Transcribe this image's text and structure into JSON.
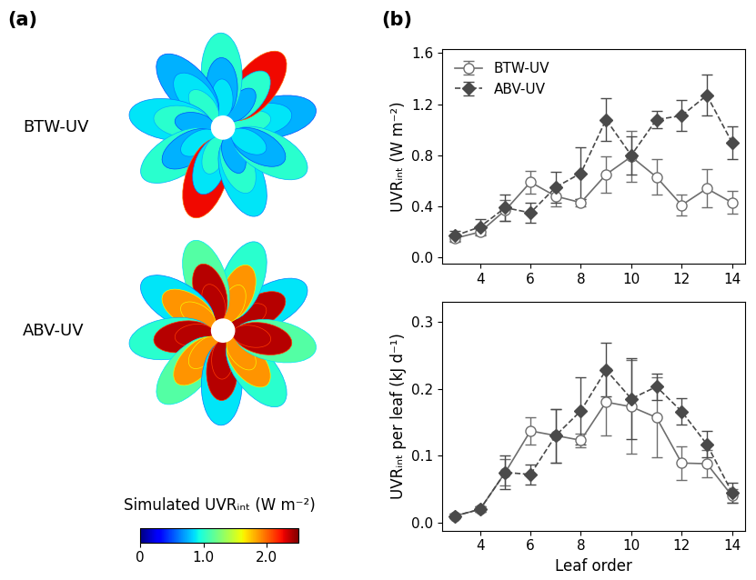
{
  "chart_data": [
    {
      "type": "image",
      "panel": "(a)",
      "labels": [
        "BTW-UV",
        "ABV-UV"
      ],
      "colorbar": {
        "label": "Simulated UVRᵢₙₜ (W m⁻²)",
        "range": [
          0,
          2.5
        ],
        "ticks": [
          0,
          {
            "value": 1.0,
            "label": "1.0"
          },
          {
            "value": 2.0,
            "label": "2.0"
          }
        ]
      }
    },
    {
      "type": "line",
      "panel": "(b)",
      "y_label": "UVRᵢₙₜ (W m⁻²)",
      "x": [
        3,
        4,
        5,
        6,
        7,
        8,
        9,
        10,
        11,
        12,
        13,
        14
      ],
      "xlim": [
        2.5,
        14.5
      ],
      "xticks": [
        4,
        6,
        8,
        10,
        12,
        14
      ],
      "ylim": [
        -0.05,
        1.63
      ],
      "yticks": [
        {
          "value": 0.0,
          "label": "0.0"
        },
        {
          "value": 0.4,
          "label": "0.4"
        },
        {
          "value": 0.8,
          "label": "0.8"
        },
        {
          "value": 1.2,
          "label": "1.2"
        },
        {
          "value": 1.6,
          "label": "1.6"
        }
      ],
      "legend": "upper left",
      "series": [
        {
          "name": "BTW-UV",
          "color": "#6e6e6e",
          "marker": "circle",
          "line_style": "solid",
          "values": [
            0.15,
            0.2,
            0.37,
            0.59,
            0.48,
            0.43,
            0.65,
            0.79,
            0.63,
            0.41,
            0.54,
            0.43
          ],
          "errors": [
            0.03,
            0.03,
            0.08,
            0.09,
            0.08,
            0.03,
            0.14,
            0.2,
            0.14,
            0.08,
            0.15,
            0.09
          ]
        },
        {
          "name": "ABV-UV",
          "color": "#4a4a4a",
          "marker": "diamond",
          "line_style": "dashed",
          "values": [
            0.17,
            0.24,
            0.39,
            0.35,
            0.55,
            0.66,
            1.08,
            0.8,
            1.08,
            1.11,
            1.27,
            0.9
          ],
          "errors": [
            0.04,
            0.06,
            0.1,
            0.08,
            0.12,
            0.2,
            0.17,
            0.15,
            0.07,
            0.12,
            0.16,
            0.13
          ]
        }
      ]
    },
    {
      "type": "line",
      "x_label": "Leaf order",
      "y_label": "UVRᵢₙₜ per leaf (kJ d⁻¹)",
      "x": [
        3,
        4,
        5,
        6,
        7,
        8,
        9,
        10,
        11,
        12,
        13,
        14
      ],
      "xlim": [
        2.5,
        14.5
      ],
      "xticks": [
        4,
        6,
        8,
        10,
        12,
        14
      ],
      "ylim": [
        -0.012,
        0.33
      ],
      "yticks": [
        {
          "value": 0.0,
          "label": "0.0"
        },
        {
          "value": 0.1,
          "label": "0.1"
        },
        {
          "value": 0.2,
          "label": "0.2"
        },
        {
          "value": 0.3,
          "label": "0.3"
        }
      ],
      "series": [
        {
          "name": "BTW-UV",
          "color": "#6e6e6e",
          "marker": "circle",
          "line_style": "solid",
          "values": [
            0.01,
            0.02,
            0.075,
            0.137,
            0.13,
            0.123,
            0.18,
            0.173,
            0.157,
            0.089,
            0.088,
            0.04
          ],
          "errors": [
            0.003,
            0.004,
            0.02,
            0.02,
            0.04,
            0.01,
            0.05,
            0.07,
            0.06,
            0.025,
            0.02,
            0.01
          ]
        },
        {
          "name": "ABV-UV",
          "color": "#4a4a4a",
          "marker": "diamond",
          "line_style": "dashed",
          "values": [
            0.01,
            0.02,
            0.075,
            0.072,
            0.13,
            0.167,
            0.228,
            0.185,
            0.203,
            0.166,
            0.117,
            0.045
          ],
          "errors": [
            0.003,
            0.004,
            0.025,
            0.015,
            0.04,
            0.05,
            0.04,
            0.06,
            0.02,
            0.02,
            0.02,
            0.015
          ]
        }
      ]
    }
  ]
}
